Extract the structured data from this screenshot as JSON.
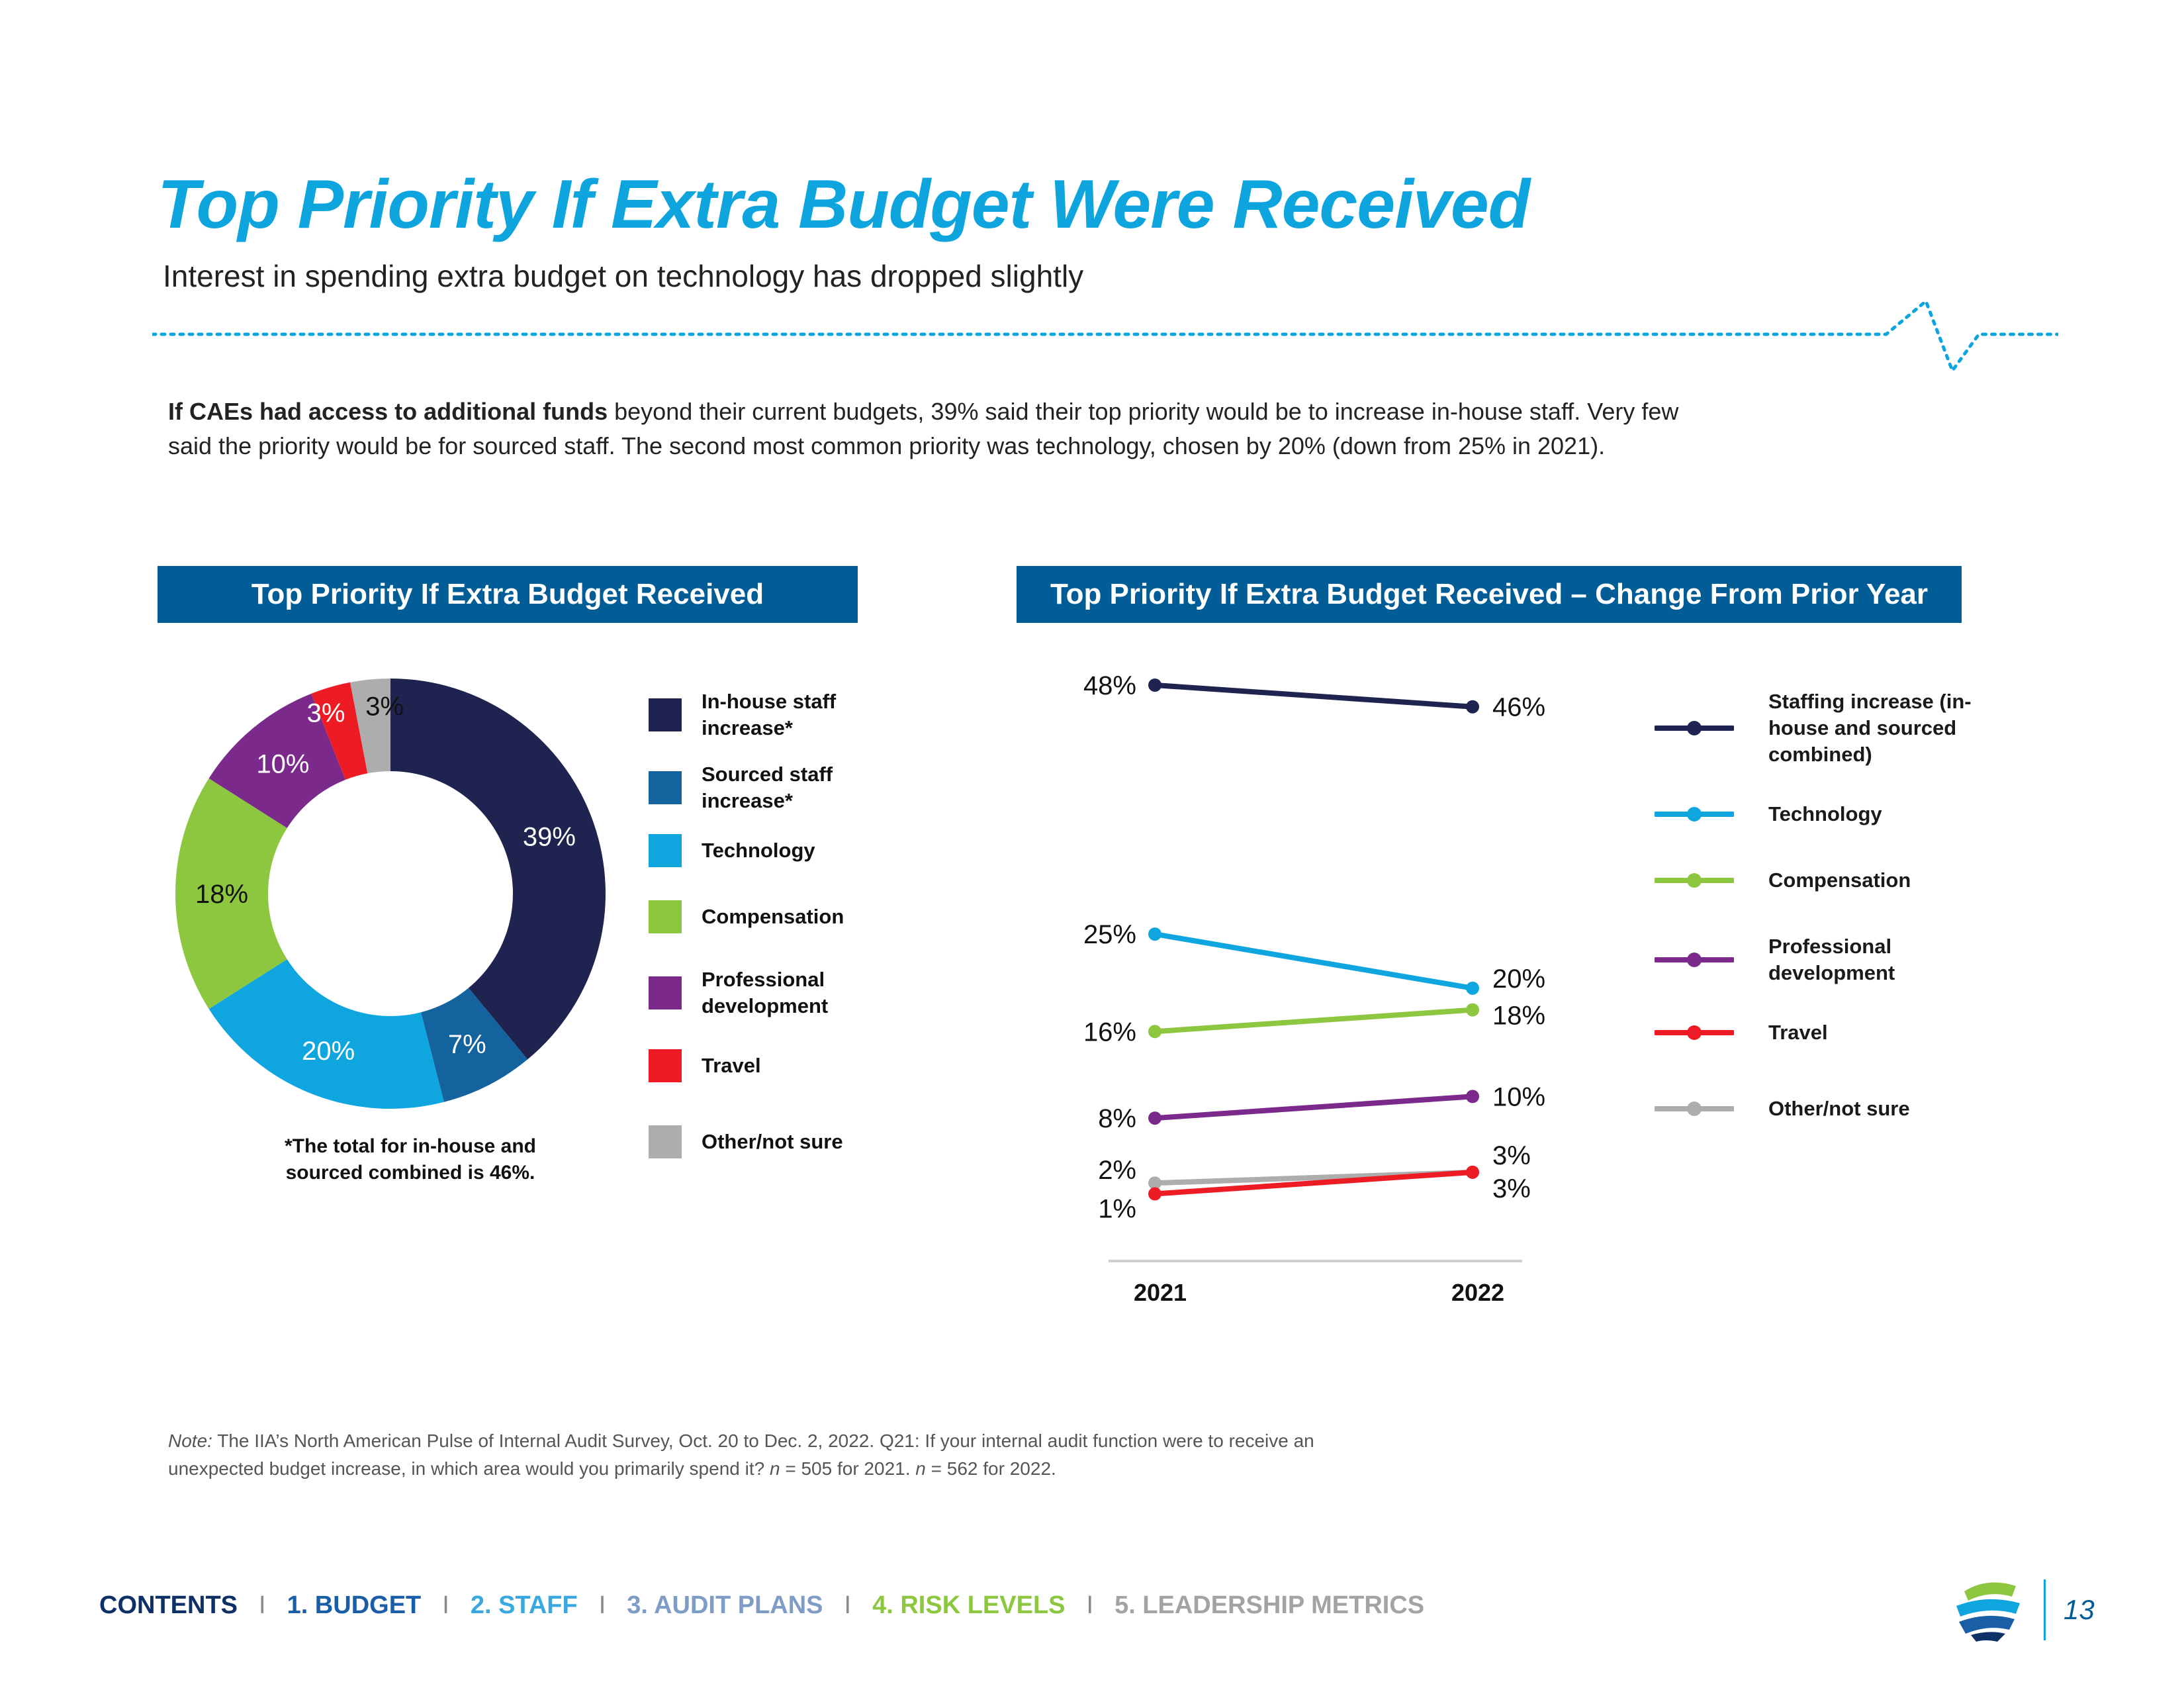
{
  "page": {
    "title": "Top Priority If Extra Budget Were Received",
    "subtitle": "Interest in spending extra budget on technology has dropped slightly",
    "intro_bold": "If CAEs had access to additional funds",
    "intro_rest": " beyond their current budgets, 39% said their top priority would be to increase in-house staff. Very few said the priority would be for sourced staff. The second most common priority was technology, chosen by 20% (down from 25% in 2021).",
    "footnote": "*The total for in-house and sourced combined is 46%.",
    "note_label": "Note:",
    "note_text": " The IIA’s North American Pulse of Internal Audit Survey, Oct. 20 to Dec. 2, 2022. Q21: If your internal audit function were to receive an unexpected budget increase, in which area would you primarily spend it? ",
    "note_n1_label": "n",
    "note_n1_text": " = 505 for 2021. ",
    "note_n2_label": "n",
    "note_n2_text": " = 562 for 2022.",
    "page_number": "13",
    "colors": {
      "title_blue": "#0ea5df",
      "header_blue": "#025d97"
    }
  },
  "nav": [
    {
      "label": "CONTENTS",
      "color": "#0d3166"
    },
    {
      "label": "1. BUDGET",
      "color": "#1a5ea8"
    },
    {
      "label": "2. STAFF",
      "color": "#38a9e0"
    },
    {
      "label": "3. AUDIT PLANS",
      "color": "#7e9cc6"
    },
    {
      "label": "4. RISK LEVELS",
      "color": "#8dc63f"
    },
    {
      "label": "5. LEADERSHIP METRICS",
      "color": "#a3a3a3"
    }
  ],
  "chart_data": [
    {
      "type": "pie",
      "donut": true,
      "title": "Top Priority If Extra Budget Received",
      "slices": [
        {
          "label": "In-house staff increase*",
          "value": 39,
          "display": "39%",
          "color": "#1f2350"
        },
        {
          "label": "Sourced staff increase*",
          "value": 7,
          "display": "7%",
          "color": "#14629e"
        },
        {
          "label": "Technology",
          "value": 20,
          "display": "20%",
          "color": "#0fa6e0"
        },
        {
          "label": "Compensation",
          "value": 18,
          "display": "18%",
          "color": "#8dc63f"
        },
        {
          "label": "Professional development",
          "value": 10,
          "display": "10%",
          "color": "#7b2a8c"
        },
        {
          "label": "Travel",
          "value": 3,
          "display": "3%",
          "color": "#ed1c24"
        },
        {
          "label": "Other/not sure",
          "value": 3,
          "display": "3%",
          "color": "#adadad"
        }
      ],
      "legend_position": "right"
    },
    {
      "type": "line",
      "title": "Top Priority If Extra Budget Received – Change From Prior Year",
      "categories": [
        "2021",
        "2022"
      ],
      "series": [
        {
          "name": "Staffing increase (in-house and sourced combined)",
          "values": [
            48,
            46
          ],
          "labels": [
            "48%",
            "46%"
          ],
          "color": "#1f2350"
        },
        {
          "name": "Technology",
          "values": [
            25,
            20
          ],
          "labels": [
            "25%",
            "20%"
          ],
          "color": "#0fa6e0"
        },
        {
          "name": "Compensation",
          "values": [
            16,
            18
          ],
          "labels": [
            "16%",
            "18%"
          ],
          "color": "#8dc63f"
        },
        {
          "name": "Professional development",
          "values": [
            8,
            10
          ],
          "labels": [
            "8%",
            "10%"
          ],
          "color": "#7b2a8c"
        },
        {
          "name": "Travel",
          "values": [
            1,
            3
          ],
          "labels": [
            "1%",
            "3%"
          ],
          "color": "#ed1c24"
        },
        {
          "name": "Other/not sure",
          "values": [
            2,
            3
          ],
          "labels": [
            "2%",
            "3%"
          ],
          "color": "#adadad"
        }
      ],
      "ylim": [
        0,
        50
      ],
      "grid": false,
      "legend_position": "right"
    }
  ]
}
